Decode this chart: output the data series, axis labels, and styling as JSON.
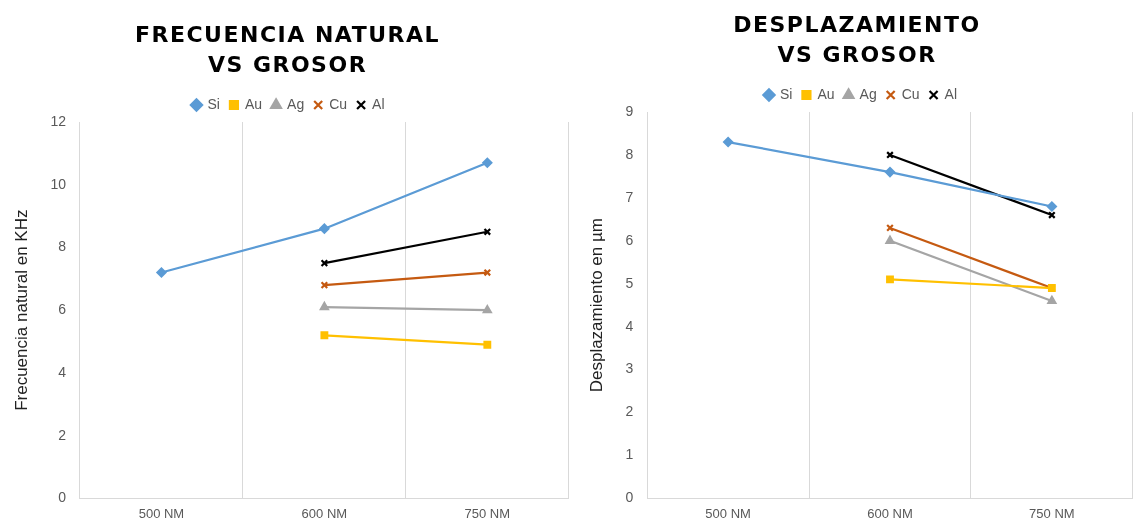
{
  "chart_data": [
    {
      "type": "line",
      "title": "FRECUENCIA NATURAL\nVS GROSOR",
      "ylabel": "Frecuencia natural en KHz",
      "categories": [
        "500 NM",
        "600 NM",
        "750 NM"
      ],
      "ylim": [
        0,
        12
      ],
      "yticks": [
        0,
        2,
        4,
        6,
        8,
        10,
        12
      ],
      "grid": "x",
      "legend": "top",
      "series": [
        {
          "name": "Si",
          "color": "#5b9bd5",
          "marker": "diamond",
          "values": [
            7.2,
            8.6,
            10.7
          ]
        },
        {
          "name": "Au",
          "color": "#ffc000",
          "marker": "square",
          "values": [
            null,
            5.2,
            4.9
          ]
        },
        {
          "name": "Ag",
          "color": "#a5a5a5",
          "marker": "triangle",
          "values": [
            null,
            6.1,
            6.0
          ]
        },
        {
          "name": "Cu",
          "color": "#c55a11",
          "marker": "cross",
          "values": [
            null,
            6.8,
            7.2
          ]
        },
        {
          "name": "Al",
          "color": "#000000",
          "marker": "cross",
          "values": [
            null,
            7.5,
            8.5
          ]
        }
      ]
    },
    {
      "type": "line",
      "title": "DESPLAZAMIENTO\nVS GROSOR",
      "ylabel": "Desplazamiento en µm",
      "categories": [
        "500 NM",
        "600 NM",
        "750 NM"
      ],
      "ylim": [
        0,
        9
      ],
      "yticks": [
        0,
        1,
        2,
        3,
        4,
        5,
        6,
        7,
        8,
        9
      ],
      "grid": "x",
      "legend": "top",
      "series": [
        {
          "name": "Si",
          "color": "#5b9bd5",
          "marker": "diamond",
          "values": [
            8.3,
            7.6,
            6.8
          ]
        },
        {
          "name": "Au",
          "color": "#ffc000",
          "marker": "square",
          "values": [
            null,
            5.1,
            4.9
          ]
        },
        {
          "name": "Ag",
          "color": "#a5a5a5",
          "marker": "triangle",
          "values": [
            null,
            6.0,
            4.6
          ]
        },
        {
          "name": "Cu",
          "color": "#c55a11",
          "marker": "cross",
          "values": [
            null,
            6.3,
            4.9
          ]
        },
        {
          "name": "Al",
          "color": "#000000",
          "marker": "cross",
          "values": [
            null,
            8.0,
            6.6
          ]
        }
      ]
    }
  ]
}
